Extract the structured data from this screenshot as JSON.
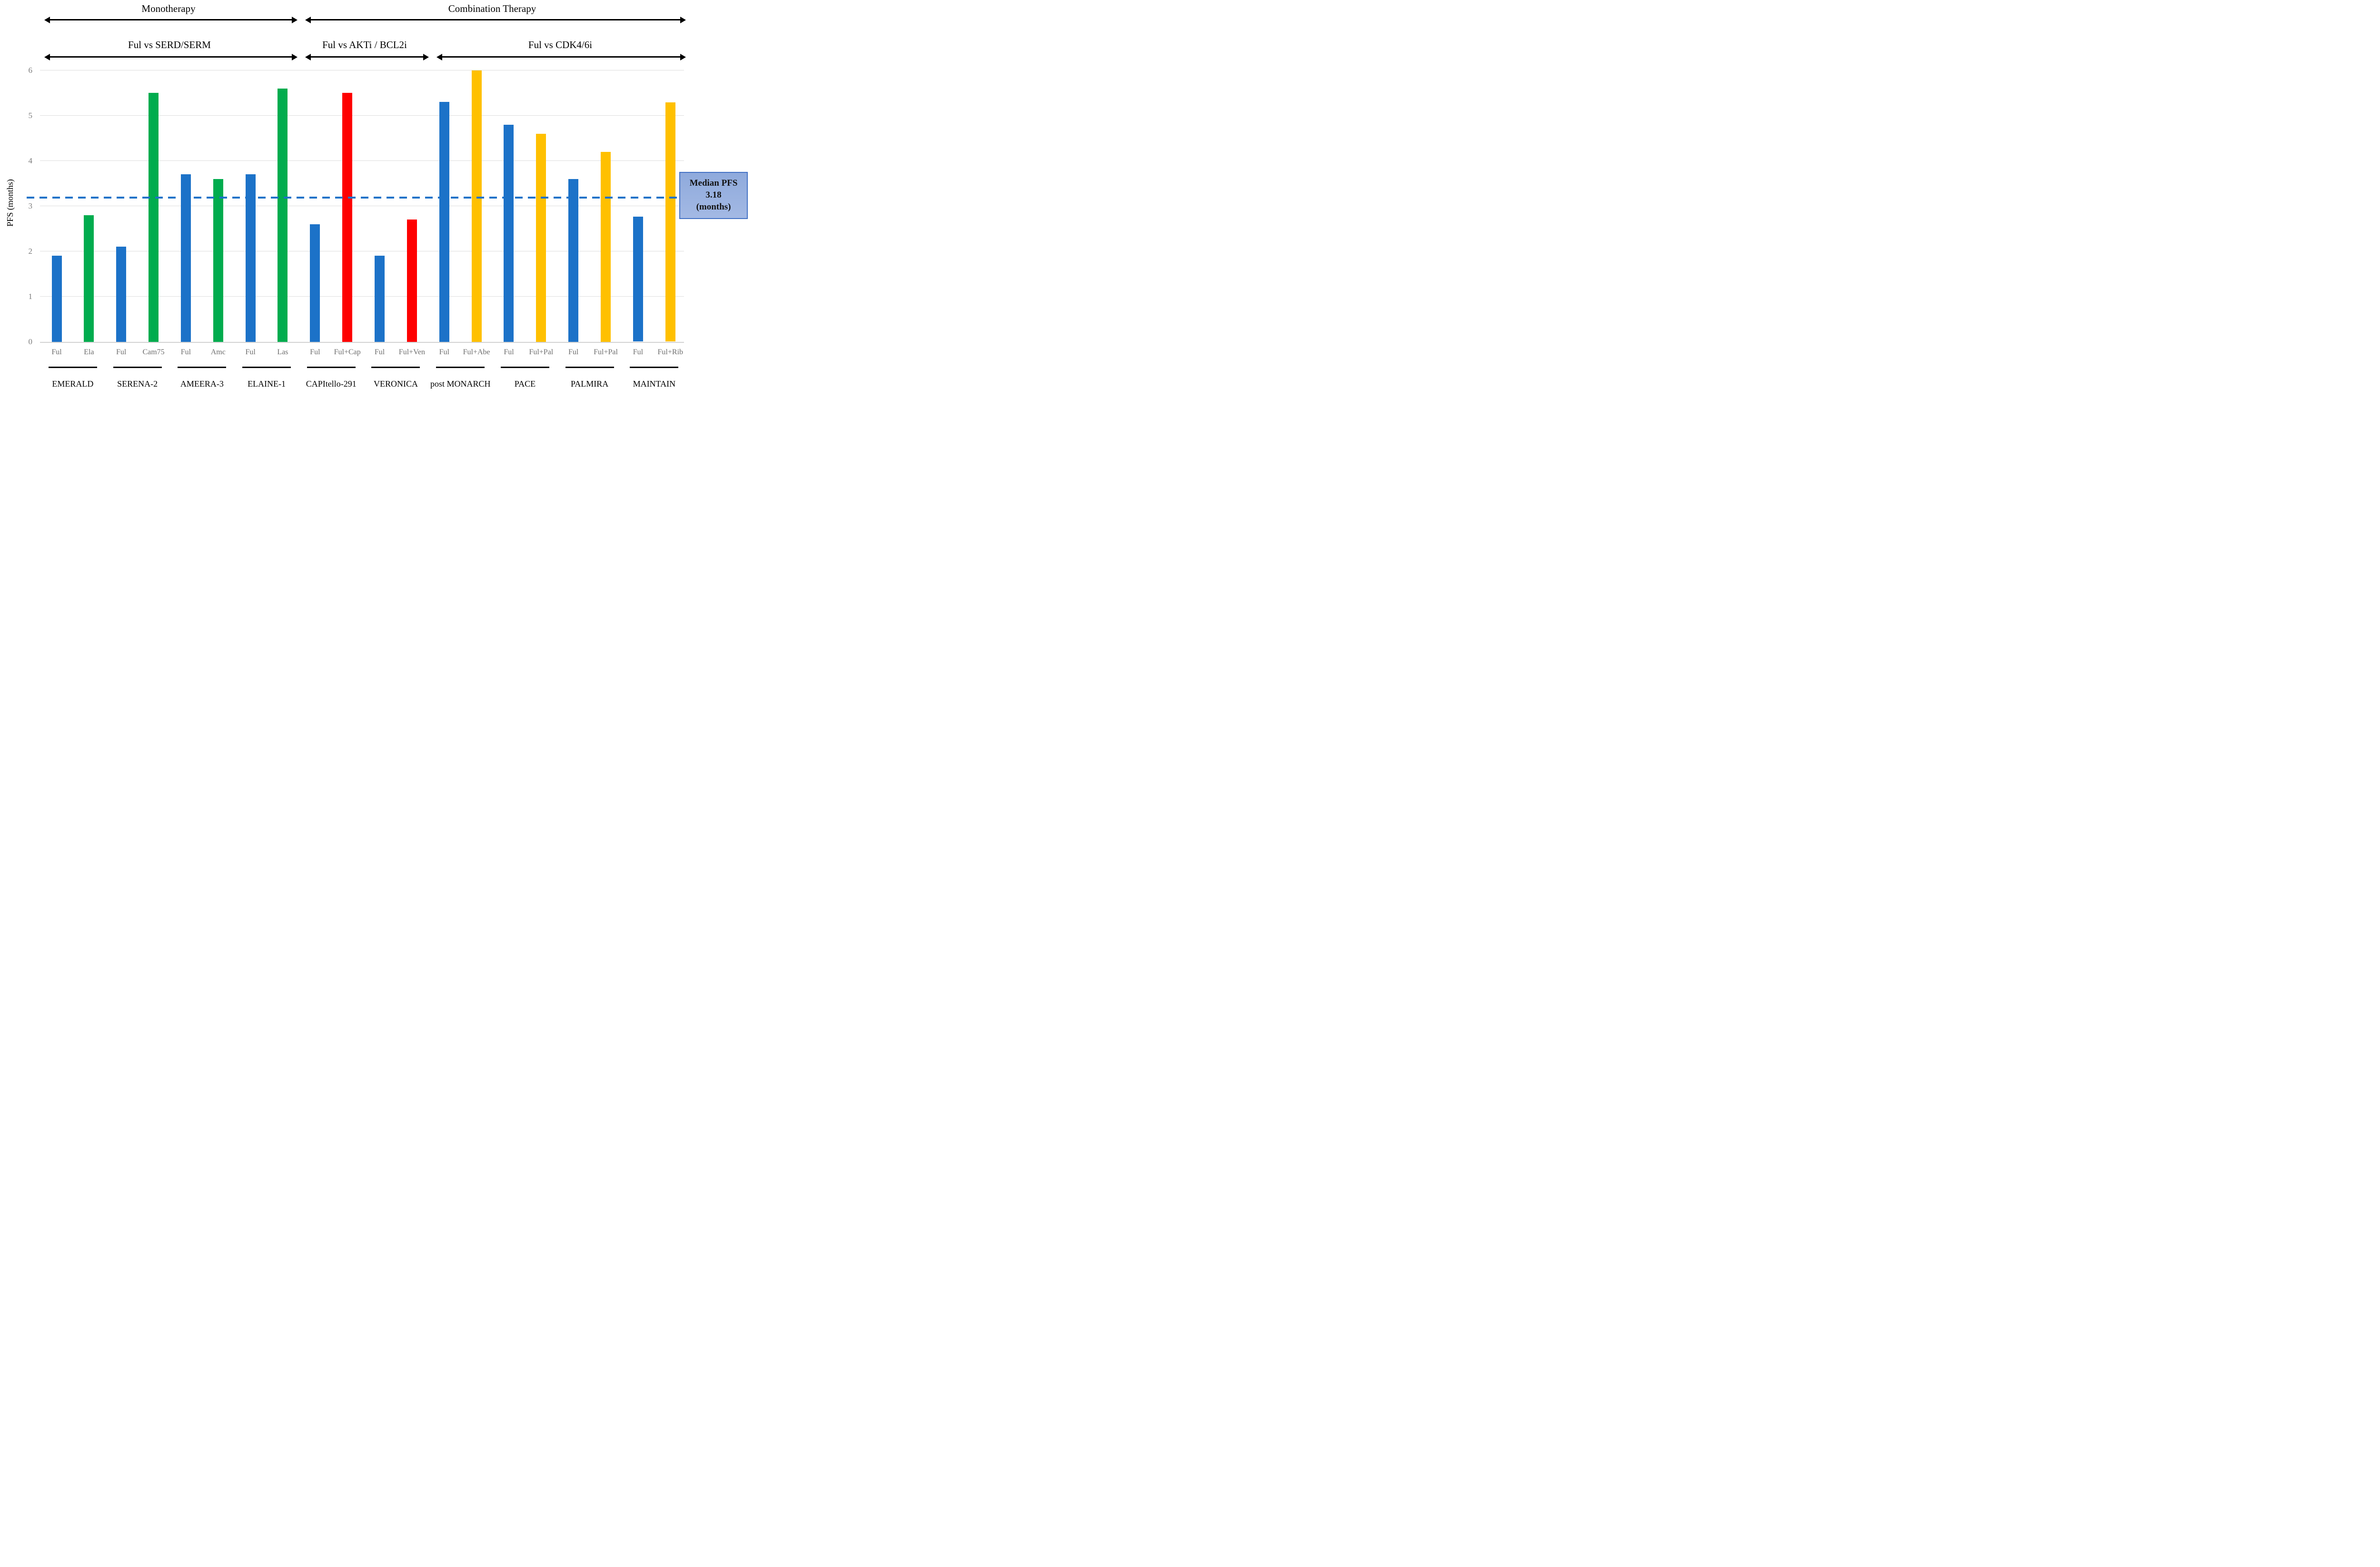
{
  "header": {
    "monotherapy": "Monotherapy",
    "combination": "Combination Therapy",
    "sub_serd": "Ful vs SERD/SERM",
    "sub_akti": "Ful vs AKTi / BCL2i",
    "sub_cdk": "Ful vs CDK4/6i"
  },
  "y_axis": {
    "title": "PFS (months)"
  },
  "median_box": {
    "lines": [
      "Median PFS",
      "3.18",
      "(months)"
    ]
  },
  "colors": {
    "ful": "#1c72c8",
    "serd": "#00ac4e",
    "akti": "#fe0000",
    "cdk46": "#ffc000",
    "median_line": "#1c72c8",
    "box_fill": "#8faadc",
    "box_border": "#4472c4"
  },
  "chart_data": {
    "type": "bar",
    "ylabel": "PFS (months)",
    "ylim": [
      0,
      6
    ],
    "yticks": [
      0,
      1,
      2,
      3,
      4,
      5,
      6
    ],
    "grid": true,
    "reference_line": {
      "value": 3.18,
      "label": "Median PFS 3.18 (months)",
      "style": "dashed"
    },
    "groups": [
      {
        "trial": "EMERALD",
        "bars": [
          {
            "label": "Ful",
            "value": 1.9,
            "series": "ful"
          },
          {
            "label": "Ela",
            "value": 2.8,
            "series": "serd"
          }
        ]
      },
      {
        "trial": "SERENA-2",
        "bars": [
          {
            "label": "Ful",
            "value": 2.1,
            "series": "ful"
          },
          {
            "label": "Cam75",
            "value": 5.5,
            "series": "serd"
          }
        ]
      },
      {
        "trial": "AMEERA-3",
        "bars": [
          {
            "label": "Ful",
            "value": 3.7,
            "series": "ful"
          },
          {
            "label": "Amc",
            "value": 3.6,
            "series": "serd"
          }
        ]
      },
      {
        "trial": "ELAINE-1",
        "bars": [
          {
            "label": "Ful",
            "value": 3.7,
            "series": "ful"
          },
          {
            "label": "Las",
            "value": 5.6,
            "series": "serd"
          }
        ]
      },
      {
        "trial": "CAPItello-291",
        "bars": [
          {
            "label": "Ful",
            "value": 2.6,
            "series": "ful"
          },
          {
            "label": "Ful+Cap",
            "value": 5.5,
            "series": "akti"
          }
        ]
      },
      {
        "trial": "VERONICA",
        "bars": [
          {
            "label": "Ful",
            "value": 1.9,
            "series": "ful"
          },
          {
            "label": "Ful+Ven",
            "value": 2.7,
            "series": "akti"
          }
        ]
      },
      {
        "trial": "post MONARCH",
        "bars": [
          {
            "label": "Ful",
            "value": 5.3,
            "series": "ful"
          },
          {
            "label": "Ful+Abe",
            "value": 6.0,
            "series": "cdk46"
          }
        ]
      },
      {
        "trial": "PACE",
        "bars": [
          {
            "label": "Ful",
            "value": 4.8,
            "series": "ful"
          },
          {
            "label": "Ful+Pal",
            "value": 4.6,
            "series": "cdk46"
          }
        ]
      },
      {
        "trial": "PALMIRA",
        "bars": [
          {
            "label": "Ful",
            "value": 3.6,
            "series": "ful"
          },
          {
            "label": "Ful+Pal",
            "value": 4.2,
            "series": "cdk46"
          }
        ]
      },
      {
        "trial": "MAINTAIN",
        "bars": [
          {
            "label": "Ful",
            "value": 2.76,
            "series": "ful"
          },
          {
            "label": "Ful+Rib",
            "value": 5.29,
            "series": "cdk46"
          }
        ]
      }
    ]
  }
}
